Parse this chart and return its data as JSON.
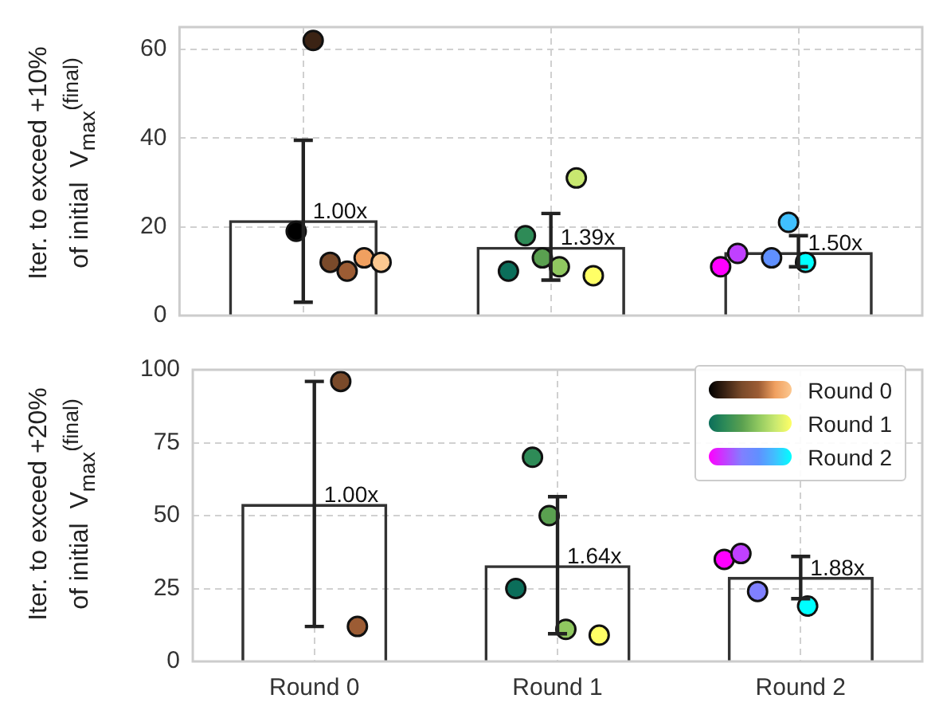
{
  "chart_data": [
    {
      "type": "bar",
      "ylabel": "Iter. to exceed +10%\nof initial  V$_{max}$$^{(final)}$",
      "categories": [
        "Round 0",
        "Round 1",
        "Round 2"
      ],
      "ylim": [
        0,
        65
      ],
      "yticks": [
        0,
        20,
        40,
        60
      ],
      "grid": true,
      "legend": false,
      "tick_labels": "y",
      "annotations": [
        {
          "text": "1.00x",
          "x": "Round 0",
          "y": 21.5
        },
        {
          "text": "1.39x",
          "x": "Round 1",
          "y": 15.5
        },
        {
          "text": "1.50x",
          "x": "Round 2",
          "y": 14.3
        }
      ],
      "series": [
        {
          "color": "#333333",
          "values": [
            21.5,
            15.5,
            14.3
          ],
          "errors": [
            [
              3,
              39.5
            ],
            [
              8,
              23
            ],
            [
              11,
              18
            ]
          ]
        },
        {
          "type": "scatter",
          "x": [
            "Round 0",
            "Round 0",
            "Round 0",
            "Round 0",
            "Round 0",
            "Round 0"
          ],
          "values": [
            19,
            62,
            12,
            10,
            13,
            12
          ],
          "colors": [
            "#000000",
            "#3b2314",
            "#7a4a2a",
            "#9c5c34",
            "#f0a060",
            "#fcc890"
          ]
        },
        {
          "type": "scatter",
          "x": [
            "Round 1",
            "Round 1",
            "Round 1",
            "Round 1",
            "Round 1",
            "Round 1"
          ],
          "values": [
            10,
            18,
            13,
            11,
            31,
            9
          ],
          "colors": [
            "#0b6e5a",
            "#2e8b57",
            "#5aa050",
            "#90c860",
            "#c8e870",
            "#ffff66"
          ]
        },
        {
          "type": "scatter",
          "x": [
            "Round 2",
            "Round 2",
            "Round 2",
            "Round 2",
            "Round 2",
            "Round 2"
          ],
          "values": [
            11,
            14,
            null,
            13,
            21,
            12
          ],
          "colors": [
            "#ff00ff",
            "#c040ff",
            "#8080ff",
            "#6090ff",
            "#40c0ff",
            "#00ffff"
          ]
        }
      ]
    },
    {
      "type": "bar",
      "ylabel": "Iter. to exceed +20%\nof initial  V$_{max}$$^{(final)}$",
      "categories": [
        "Round 0",
        "Round 1",
        "Round 2"
      ],
      "ylim": [
        0,
        100
      ],
      "yticks": [
        0,
        25,
        50,
        75,
        100
      ],
      "grid": true,
      "legend": "top right",
      "annotations": [
        {
          "text": "1.00x",
          "x": "Round 0",
          "y": 54
        },
        {
          "text": "1.64x",
          "x": "Round 1",
          "y": 33
        },
        {
          "text": "1.88x",
          "x": "Round 2",
          "y": 29
        }
      ],
      "series": [
        {
          "color": "#333333",
          "values": [
            54,
            33,
            29
          ],
          "errors": [
            [
              12,
              96
            ],
            [
              9.5,
              56.5
            ],
            [
              21.5,
              36
            ]
          ]
        },
        {
          "type": "scatter",
          "name": "Round 0",
          "x": [
            "Round 0",
            "Round 0",
            "Round 0",
            "Round 0",
            "Round 0",
            "Round 0"
          ],
          "values": [
            null,
            null,
            96,
            12,
            null,
            null
          ],
          "colors": [
            "#000000",
            "#3b2314",
            "#7a4a2a",
            "#9c5c34",
            "#f0a060",
            "#fcc890"
          ]
        },
        {
          "type": "scatter",
          "name": "Round 1",
          "x": [
            "Round 1",
            "Round 1",
            "Round 1",
            "Round 1",
            "Round 1",
            "Round 1"
          ],
          "values": [
            25,
            70,
            50,
            11,
            null,
            9
          ],
          "colors": [
            "#0b6e5a",
            "#2e8b57",
            "#5aa050",
            "#90c860",
            "#c8e870",
            "#ffff66"
          ]
        },
        {
          "type": "scatter",
          "name": "Round 2",
          "x": [
            "Round 2",
            "Round 2",
            "Round 2",
            "Round 2",
            "Round 2",
            "Round 2"
          ],
          "values": [
            35,
            37,
            24,
            null,
            null,
            19
          ],
          "colors": [
            "#ff00ff",
            "#c040ff",
            "#8080ff",
            "#6090ff",
            "#40c0ff",
            "#00ffff"
          ]
        }
      ]
    }
  ]
}
